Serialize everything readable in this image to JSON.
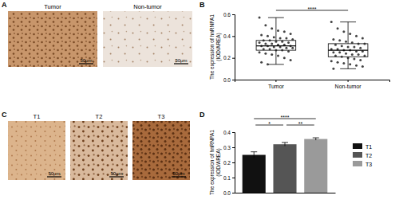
{
  "figure": {
    "panel_labels": [
      "A",
      "B",
      "C",
      "D"
    ],
    "images": [
      {
        "title": "Tumor",
        "scale_bar": "50μm"
      },
      {
        "title": "Non-tumor",
        "scale_bar": "50μm"
      },
      {
        "title": "T1",
        "scale_bar": "50μm"
      },
      {
        "title": "T2",
        "scale_bar": "50μm"
      },
      {
        "title": "T3",
        "scale_bar": "50μm"
      }
    ]
  },
  "chart_data": [
    {
      "type": "box",
      "ylabel": [
        "The expression of hnRNPA1",
        "(IOD/AREA)"
      ],
      "categories": [
        "Tumor",
        "Non-tumor"
      ],
      "ylim": [
        0,
        0.6
      ],
      "yticks": [
        {
          "value": 0,
          "label": "0.0"
        },
        0.2,
        0.4,
        0.6
      ],
      "boxes": [
        {
          "min": 0.14,
          "q1": 0.27,
          "median": 0.31,
          "q3": 0.36,
          "max": 0.57
        },
        {
          "min": 0.1,
          "q1": 0.21,
          "median": 0.27,
          "q3": 0.33,
          "max": 0.53
        }
      ],
      "points": [
        [
          0.57,
          0.5,
          0.47,
          0.45,
          0.44,
          0.42,
          0.41,
          0.4,
          0.39,
          0.38,
          0.38,
          0.37,
          0.36,
          0.36,
          0.35,
          0.35,
          0.34,
          0.34,
          0.33,
          0.33,
          0.32,
          0.32,
          0.31,
          0.31,
          0.31,
          0.3,
          0.3,
          0.29,
          0.29,
          0.28,
          0.28,
          0.27,
          0.27,
          0.26,
          0.25,
          0.24,
          0.23,
          0.22,
          0.2,
          0.18,
          0.16,
          0.14
        ],
        [
          0.53,
          0.47,
          0.44,
          0.42,
          0.4,
          0.38,
          0.37,
          0.36,
          0.35,
          0.34,
          0.33,
          0.33,
          0.32,
          0.31,
          0.3,
          0.3,
          0.29,
          0.28,
          0.28,
          0.27,
          0.27,
          0.26,
          0.26,
          0.25,
          0.25,
          0.24,
          0.23,
          0.23,
          0.22,
          0.22,
          0.21,
          0.2,
          0.19,
          0.18,
          0.17,
          0.16,
          0.15,
          0.14,
          0.13,
          0.12,
          0.1
        ]
      ],
      "annotations": [
        {
          "text": "****",
          "between": [
            "Tumor",
            "Non-tumor"
          ]
        }
      ]
    },
    {
      "type": "bar",
      "ylabel": [
        "The expression of hnRNPA1",
        "(IOD/AREA)"
      ],
      "categories": [
        "T1",
        "T2",
        "T3"
      ],
      "values": [
        0.25,
        0.32,
        0.355
      ],
      "errors": [
        0.02,
        0.012,
        0.008
      ],
      "colors": [
        "#111111",
        "#555555",
        "#9a9a9a"
      ],
      "ylim": [
        0,
        0.4
      ],
      "yticks": [
        {
          "value": 0,
          "label": "0.0"
        },
        0.1,
        0.2,
        0.3,
        0.4
      ],
      "tick_labels": "y",
      "legend": "right",
      "annotations": [
        {
          "text": "*",
          "between": [
            "T1",
            "T2"
          ]
        },
        {
          "text": "**",
          "between": [
            "T2",
            "T3"
          ]
        },
        {
          "text": "****",
          "between": [
            "T1",
            "T3"
          ]
        }
      ]
    }
  ]
}
